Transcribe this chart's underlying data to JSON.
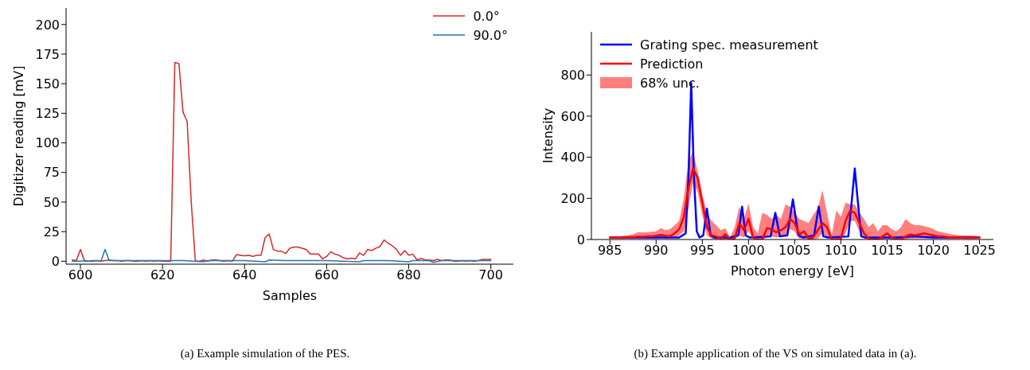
{
  "chart_data": [
    {
      "type": "line",
      "xlabel": "Samples",
      "ylabel": "Digitizer reading [mV]",
      "xlim": [
        596.5,
        705.5
      ],
      "ylim": [
        -2.5,
        214
      ],
      "xticks": [
        600,
        620,
        640,
        660,
        680,
        700
      ],
      "yticks": [
        0,
        25,
        50,
        75,
        100,
        125,
        150,
        175,
        200
      ],
      "grid": false,
      "legend": "top right",
      "title": "(a) Example simulation of the PES.",
      "series": [
        {
          "name": "0.0°",
          "color": "#d62728",
          "x": [
            598,
            599,
            600,
            601,
            602,
            603,
            604,
            605,
            606,
            607,
            608,
            609,
            610,
            611,
            612,
            613,
            614,
            615,
            616,
            617,
            618,
            619,
            620,
            621,
            622,
            623,
            624,
            625,
            626,
            627,
            628,
            629,
            630,
            631,
            632,
            633,
            634,
            635,
            636,
            637,
            638,
            639,
            640,
            641,
            642,
            643,
            644,
            645,
            646,
            647,
            648,
            649,
            650,
            651,
            652,
            653,
            654,
            655,
            656,
            657,
            658,
            659,
            660,
            661,
            662,
            663,
            664,
            665,
            666,
            667,
            668,
            669,
            670,
            671,
            672,
            673,
            674,
            675,
            676,
            677,
            678,
            679,
            680,
            681,
            682,
            683,
            684,
            685,
            686,
            687,
            688,
            689,
            690,
            691,
            692,
            693,
            694,
            695,
            696,
            697,
            698,
            699,
            700
          ],
          "values": [
            1,
            0.5,
            10,
            0,
            0,
            0.5,
            0.5,
            0,
            0.5,
            1,
            0.5,
            0.5,
            0,
            0.5,
            0.5,
            0,
            0,
            0.5,
            0,
            0.5,
            0,
            0.5,
            0,
            0,
            0,
            168,
            167,
            126,
            118,
            50,
            0,
            0,
            1,
            0,
            1,
            1,
            0.5,
            0,
            0.5,
            0,
            5.5,
            5,
            4.5,
            5,
            4,
            5,
            5,
            20,
            23,
            10,
            8.5,
            8.5,
            6.5,
            11,
            12,
            12,
            11,
            10,
            6,
            6,
            6,
            2,
            4,
            8,
            6,
            5,
            3,
            2,
            2.5,
            2,
            7,
            5,
            10,
            9,
            11,
            12.5,
            18,
            15,
            13,
            10,
            5,
            9,
            5,
            6,
            1,
            2.5,
            1,
            1,
            0.5,
            1.5,
            0.5,
            1,
            1,
            0,
            0,
            0.5,
            0,
            0.5,
            0,
            0.5,
            1.5,
            1.5,
            1.5
          ]
        },
        {
          "name": "90.0°",
          "color": "#1f77b4",
          "x": [
            598,
            600,
            601,
            602,
            603,
            604,
            605,
            606,
            607,
            615,
            620,
            625,
            630,
            631,
            635,
            640,
            645,
            646,
            650,
            660,
            668,
            669,
            675,
            680,
            681,
            685,
            686,
            688,
            690,
            695,
            700
          ],
          "values": [
            0,
            0,
            0.5,
            0,
            0,
            0.5,
            0,
            10,
            0.5,
            0.5,
            0.5,
            0.5,
            -0.5,
            0.5,
            0.5,
            0.5,
            -0.5,
            1,
            0.5,
            0.5,
            -0.5,
            0.5,
            0.5,
            -0.5,
            0.5,
            0.5,
            -1,
            0.5,
            0.5,
            0.5,
            0.5
          ]
        }
      ]
    },
    {
      "type": "line",
      "xlabel": "Photon energy [eV]",
      "ylabel": "Intensity",
      "xlim": [
        983,
        1026.5
      ],
      "ylim": [
        0,
        1010
      ],
      "xticks": [
        985,
        990,
        995,
        1000,
        1005,
        1010,
        1015,
        1020,
        1025
      ],
      "yticks": [
        0,
        200,
        400,
        600,
        800
      ],
      "grid": false,
      "legend": "top left",
      "title": "(b) Example application of the VS on simulated data in (a).",
      "annotations": [
        "68% unc."
      ],
      "series": [
        {
          "name": "Grating spec. measurement",
          "color": "#0000ff",
          "x": [
            985,
            987,
            989,
            991,
            992.5,
            993.2,
            993.5,
            993.8,
            994.1,
            994.4,
            994.7,
            995.1,
            995.5,
            995.9,
            996.3,
            998,
            998.9,
            999.3,
            999.7,
            1000.1,
            1002.4,
            1002.9,
            1003.4,
            1004.2,
            1004.8,
            1005.4,
            1005.9,
            1007.1,
            1007.6,
            1008.1,
            1008.6,
            1010.8,
            1011.2,
            1011.5,
            1011.8,
            1012.2,
            1012.6,
            1016,
            1018,
            1020,
            1025
          ],
          "values": [
            10,
            10,
            10,
            10,
            10,
            30,
            300,
            760,
            300,
            40,
            10,
            20,
            150,
            20,
            10,
            10,
            20,
            160,
            20,
            10,
            15,
            130,
            15,
            20,
            195,
            20,
            10,
            20,
            160,
            15,
            10,
            15,
            200,
            345,
            200,
            15,
            10,
            10,
            15,
            10,
            10
          ]
        },
        {
          "name": "Prediction",
          "color": "#ff0000",
          "x": [
            985,
            985.5,
            986,
            986.5,
            987,
            987.5,
            988,
            988.5,
            989,
            989.5,
            990,
            990.5,
            991,
            991.5,
            992,
            992.5,
            993,
            993.5,
            994,
            994.5,
            995,
            995.5,
            996,
            996.5,
            997,
            997.5,
            998,
            998.5,
            999,
            999.5,
            1000,
            1000.5,
            1001,
            1001.5,
            1002,
            1002.5,
            1003,
            1003.5,
            1004,
            1004.5,
            1005,
            1005.5,
            1006,
            1006.5,
            1007,
            1007.5,
            1008,
            1008.5,
            1009,
            1009.5,
            1010,
            1010.5,
            1011,
            1011.5,
            1012,
            1012.5,
            1013,
            1013.5,
            1014,
            1014.5,
            1015,
            1015.5,
            1016,
            1016.5,
            1017,
            1017.5,
            1018,
            1018.5,
            1019,
            1019.5,
            1020,
            1020.5,
            1021,
            1021.5,
            1022,
            1022.5,
            1023,
            1023.5,
            1024,
            1024.5,
            1025
          ],
          "values": [
            10,
            10,
            10,
            10,
            12,
            12,
            14,
            14,
            15,
            15,
            18,
            22,
            18,
            15,
            30,
            50,
            110,
            250,
            345,
            300,
            180,
            60,
            20,
            15,
            5,
            25,
            0,
            5,
            80,
            45,
            100,
            10,
            0,
            0,
            55,
            50,
            35,
            45,
            60,
            100,
            80,
            25,
            40,
            5,
            10,
            45,
            80,
            60,
            0,
            0,
            5,
            90,
            140,
            130,
            80,
            30,
            5,
            0,
            0,
            15,
            30,
            10,
            0,
            0,
            15,
            25,
            20,
            25,
            30,
            25,
            20,
            15,
            15,
            12,
            10,
            10,
            10,
            8,
            8,
            8,
            10
          ],
          "lower": [
            5,
            5,
            5,
            5,
            5,
            5,
            5,
            5,
            5,
            5,
            5,
            8,
            5,
            5,
            10,
            20,
            40,
            150,
            280,
            230,
            120,
            20,
            5,
            0,
            0,
            0,
            0,
            0,
            20,
            10,
            40,
            0,
            0,
            0,
            10,
            15,
            10,
            15,
            20,
            50,
            40,
            5,
            5,
            0,
            0,
            5,
            30,
            10,
            0,
            0,
            0,
            30,
            90,
            90,
            40,
            5,
            0,
            0,
            0,
            0,
            5,
            0,
            0,
            0,
            0,
            5,
            5,
            5,
            5,
            5,
            5,
            5,
            5,
            5,
            5,
            5,
            5,
            5,
            5,
            5,
            5
          ],
          "upper": [
            15,
            15,
            15,
            18,
            20,
            25,
            35,
            35,
            35,
            38,
            40,
            55,
            45,
            50,
            70,
            90,
            200,
            380,
            430,
            330,
            220,
            130,
            90,
            70,
            45,
            55,
            10,
            60,
            160,
            100,
            175,
            60,
            30,
            130,
            120,
            100,
            120,
            100,
            170,
            160,
            130,
            100,
            90,
            80,
            120,
            150,
            240,
            130,
            20,
            140,
            110,
            180,
            170,
            170,
            130,
            100,
            60,
            80,
            40,
            70,
            70,
            50,
            40,
            60,
            100,
            80,
            70,
            70,
            65,
            60,
            50,
            40,
            35,
            30,
            25,
            22,
            20,
            20,
            20,
            18,
            15
          ]
        }
      ]
    }
  ]
}
